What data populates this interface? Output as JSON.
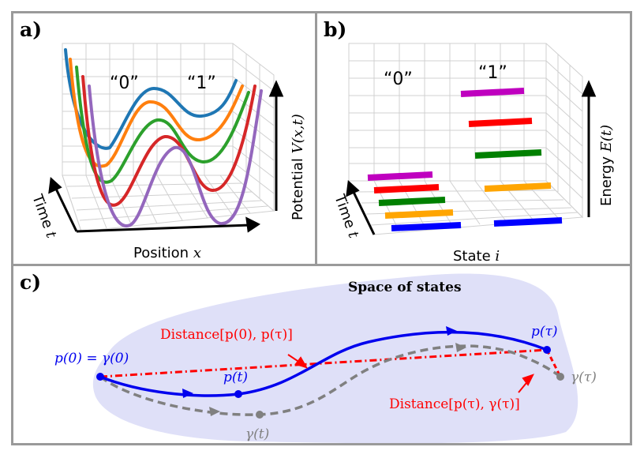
{
  "panel_a": {
    "label": "a)",
    "state0": "“0”",
    "state1": "“1”",
    "xlabel_text": "Position",
    "xlabel_var": "x",
    "ylabel_text": "Potential",
    "ylabel_var": "V(x,t)",
    "tlabel_text": "Time",
    "tlabel_var": "t",
    "curve_colors": [
      "#9467bd",
      "#d62728",
      "#2ca02c",
      "#ff7f0e",
      "#1f77b4"
    ]
  },
  "panel_b": {
    "label": "b)",
    "state0": "“0”",
    "state1": "“1”",
    "xlabel_text": "State",
    "xlabel_var": "i",
    "ylabel_text": "Energy",
    "ylabel_var": "E(t)",
    "tlabel_text": "Time",
    "tlabel_var": "t",
    "level_colors": [
      "#0000ff",
      "#ffa500",
      "#008000",
      "#ff0000",
      "#bf00bf"
    ]
  },
  "panel_c": {
    "label": "c)",
    "title": "Space of states",
    "p0_label": "p(0) = γ(0)",
    "pt_label": "p(t)",
    "ptau_label": "p(τ)",
    "gammat_label": "γ(t)",
    "gammatau_label": "γ(τ)",
    "dist1_label": "Distance[p(0), p(τ)]",
    "dist2_label": "Distance[p(τ), γ(τ)]",
    "colors": {
      "region": "#dfe0f8",
      "path_p": "#0000ee",
      "path_gamma": "#808080",
      "distance": "#ff0000"
    }
  }
}
